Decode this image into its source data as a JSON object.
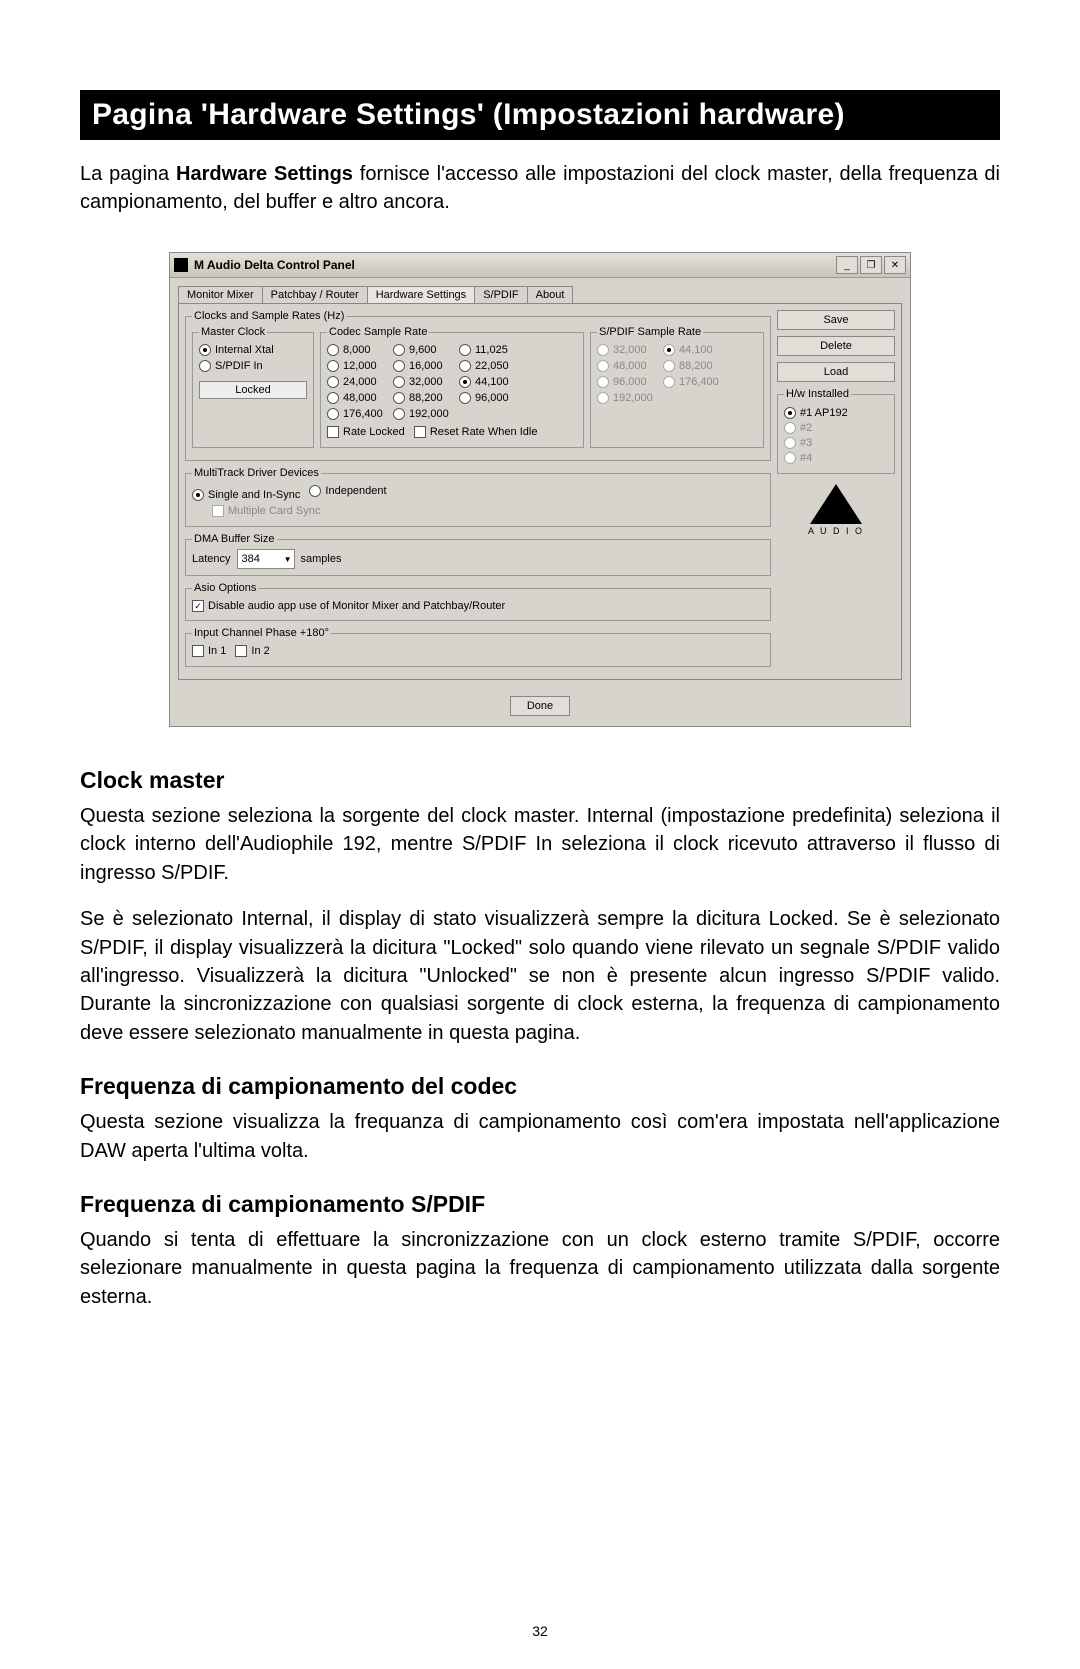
{
  "page": {
    "title": "Pagina 'Hardware Settings' (Impostazioni hardware)",
    "intro_pre": "La pagina ",
    "intro_bold": "Hardware Settings",
    "intro_post": " fornisce l'accesso alle impostazioni del clock master, della frequenza di campionamento, del buffer e altro ancora.",
    "page_number": "32"
  },
  "window": {
    "title": "M Audio Delta Control Panel",
    "buttons": {
      "min": "_",
      "restore": "❐",
      "close": "✕"
    }
  },
  "tabs": [
    {
      "label": "Monitor Mixer",
      "active": false
    },
    {
      "label": "Patchbay / Router",
      "active": false
    },
    {
      "label": "Hardware Settings",
      "active": true
    },
    {
      "label": "S/PDIF",
      "active": false
    },
    {
      "label": "About",
      "active": false
    }
  ],
  "groups": {
    "clocks_sample_rates": "Clocks and Sample Rates (Hz)",
    "master_clock": "Master Clock",
    "codec_sample_rate": "Codec Sample Rate",
    "spdif_sample_rate": "S/PDIF Sample Rate",
    "multitrack": "MultiTrack Driver Devices",
    "dma": "DMA Buffer Size",
    "asio": "Asio Options",
    "input_phase": "Input Channel Phase +180°",
    "hw_installed": "H/w Installed"
  },
  "master_clock": {
    "options": [
      {
        "label": "Internal Xtal",
        "selected": true
      },
      {
        "label": "S/PDIF In",
        "selected": false
      }
    ],
    "locked": "Locked"
  },
  "codec_rates": [
    {
      "v": "8,000",
      "sel": false
    },
    {
      "v": "9,600",
      "sel": false
    },
    {
      "v": "11,025",
      "sel": false
    },
    {
      "v": "12,000",
      "sel": false
    },
    {
      "v": "16,000",
      "sel": false
    },
    {
      "v": "22,050",
      "sel": false
    },
    {
      "v": "24,000",
      "sel": false
    },
    {
      "v": "32,000",
      "sel": false
    },
    {
      "v": "44,100",
      "sel": true
    },
    {
      "v": "48,000",
      "sel": false
    },
    {
      "v": "88,200",
      "sel": false
    },
    {
      "v": "96,000",
      "sel": false
    },
    {
      "v": "176,400",
      "sel": false
    },
    {
      "v": "192,000",
      "sel": false
    }
  ],
  "codec_checks": {
    "rate_locked": {
      "label": "Rate Locked",
      "checked": false
    },
    "reset_idle": {
      "label": "Reset Rate When Idle",
      "checked": false
    }
  },
  "spdif_rates": [
    {
      "v": "32,000",
      "sel": false,
      "disabled": true
    },
    {
      "v": "44,100",
      "sel": true,
      "disabled": true
    },
    {
      "v": "48,000",
      "sel": false,
      "disabled": true
    },
    {
      "v": "88,200",
      "sel": false,
      "disabled": true
    },
    {
      "v": "96,000",
      "sel": false,
      "disabled": true
    },
    {
      "v": "176,400",
      "sel": false,
      "disabled": true
    },
    {
      "v": "192,000",
      "sel": false,
      "disabled": true
    }
  ],
  "multitrack": {
    "options": [
      {
        "label": "Single and In-Sync",
        "selected": true
      },
      {
        "label": "Independent",
        "selected": false
      }
    ],
    "sub": {
      "label": "Multiple Card Sync",
      "checked": false
    }
  },
  "dma": {
    "latency_label": "Latency",
    "value": "384",
    "unit": "samples"
  },
  "asio": {
    "disable": {
      "label": "Disable audio app use of Monitor Mixer and Patchbay/Router",
      "checked": true
    }
  },
  "input_phase": {
    "in1": {
      "label": "In 1",
      "checked": false
    },
    "in2": {
      "label": "In 2",
      "checked": false
    }
  },
  "side": {
    "save": "Save",
    "delete": "Delete",
    "load": "Load"
  },
  "hw_installed": [
    {
      "label": "#1 AP192",
      "selected": true,
      "disabled": false
    },
    {
      "label": "#2",
      "selected": false,
      "disabled": true
    },
    {
      "label": "#3",
      "selected": false,
      "disabled": true
    },
    {
      "label": "#4",
      "selected": false,
      "disabled": true
    }
  ],
  "logo": {
    "text": "A U D I O"
  },
  "done": "Done",
  "sections": {
    "clock_master": {
      "heading": "Clock master",
      "p1": "Questa sezione seleziona la sorgente del clock master. Internal (impostazione predefinita) seleziona il clock interno dell'Audiophile 192, mentre S/PDIF In seleziona il clock ricevuto attraverso il flusso di ingresso S/PDIF.",
      "p2": "Se è selezionato Internal, il display di stato visualizzerà sempre la dicitura Locked. Se è selezionato S/PDIF, il display visualizzerà la dicitura \"Locked\" solo quando viene rilevato un segnale S/PDIF valido all'ingresso. Visualizzerà la dicitura \"Unlocked\" se non è presente alcun ingresso S/PDIF valido. Durante la sincronizzazione con qualsiasi sorgente di clock esterna, la frequenza di campionamento deve essere selezionato manualmente in questa pagina."
    },
    "codec_freq": {
      "heading": "Frequenza di campionamento del codec",
      "p1": "Questa sezione visualizza la frequanza di campionamento così com'era impostata nell'applicazione DAW aperta l'ultima volta."
    },
    "spdif_freq": {
      "heading": "Frequenza di campionamento S/PDIF",
      "p1": "Quando si tenta di effettuare la sincronizzazione con un clock esterno tramite S/PDIF, occorre selezionare manualmente in questa pagina la frequenza di campionamento utilizzata dalla sorgente esterna."
    }
  },
  "colors": {
    "page_bg": "#ffffff",
    "title_bg": "#000000",
    "title_fg": "#ffffff",
    "panel_bg": "#d6d4cc",
    "btn_bg": "#e0ded6",
    "border": "#888888"
  }
}
